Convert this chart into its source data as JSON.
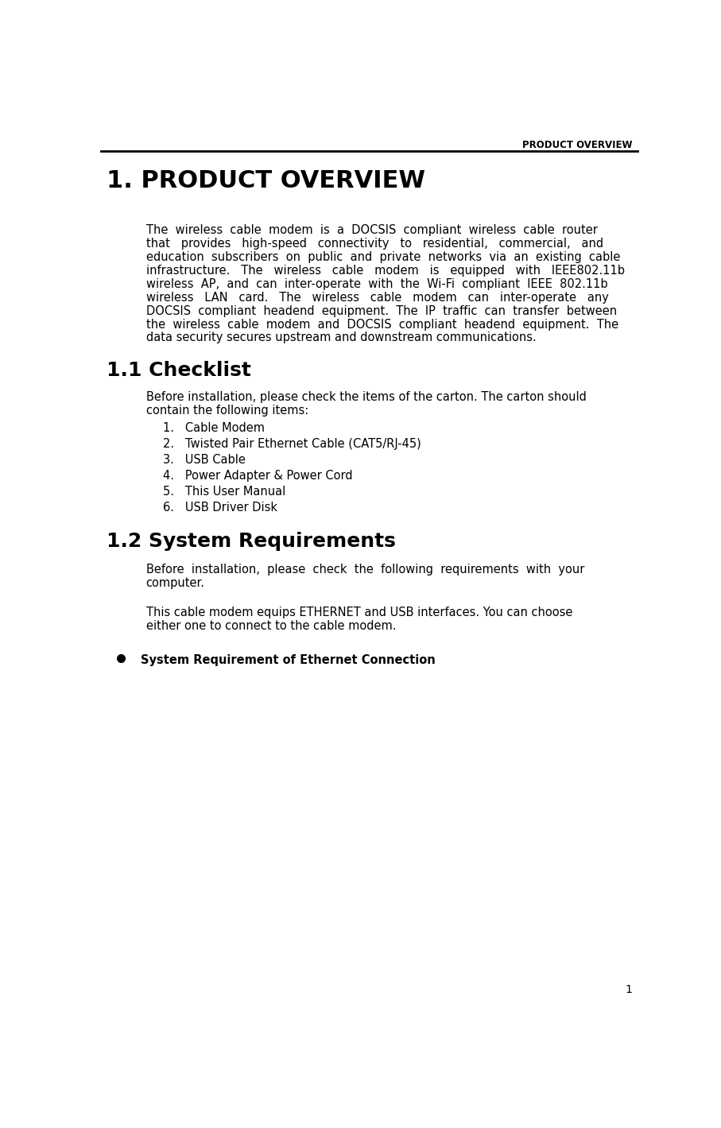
{
  "header_text": "PRODUCT OVERVIEW",
  "title": "1. PRODUCT OVERVIEW",
  "body_lines": [
    "The  wireless  cable  modem  is  a  DOCSIS  compliant  wireless  cable  router",
    "that   provides   high-speed   connectivity   to   residential,   commercial,   and",
    "education  subscribers  on  public  and  private  networks  via  an  existing  cable",
    "infrastructure.   The   wireless   cable   modem   is   equipped   with   IEEE802.11b",
    "wireless  AP,  and  can  inter-operate  with  the  Wi-Fi  compliant  IEEE  802.11b",
    "wireless   LAN   card.   The   wireless   cable   modem   can   inter-operate   any",
    "DOCSIS  compliant  headend  equipment.  The  IP  traffic  can  transfer  between",
    "the  wireless  cable  modem  and  DOCSIS  compliant  headend  equipment.  The",
    "data security secures upstream and downstream communications."
  ],
  "section_11": "1.1 Checklist",
  "checklist_intro_lines": [
    "Before installation, please check the items of the carton. The carton should",
    "contain the following items:"
  ],
  "checklist_items": [
    "1.   Cable Modem",
    "2.   Twisted Pair Ethernet Cable (CAT5/RJ-45)",
    "3.   USB Cable",
    "4.   Power Adapter & Power Cord",
    "5.   This User Manual",
    "6.   USB Driver Disk"
  ],
  "section_12": "1.2 System Requirements",
  "sysreq_para1_lines": [
    "Before  installation,  please  check  the  following  requirements  with  your",
    "computer."
  ],
  "sysreq_para2_lines": [
    "This cable modem equips ETHERNET and USB interfaces. You can choose",
    "either one to connect to the cable modem."
  ],
  "bullet_text": "System Requirement of Ethernet Connection",
  "page_number": "1",
  "bg_color": "#ffffff",
  "text_color": "#000000",
  "header_color": "#000000",
  "title_color": "#000000",
  "section_color": "#000000"
}
